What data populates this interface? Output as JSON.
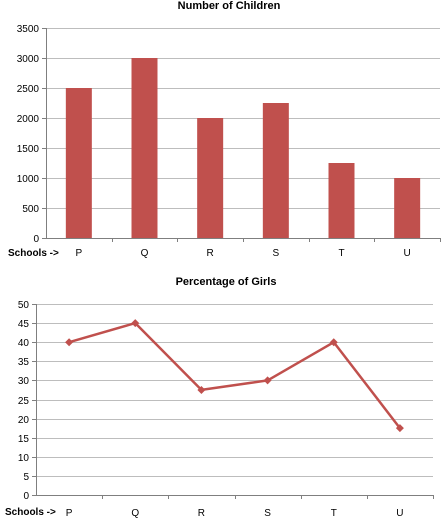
{
  "chart_data": [
    {
      "type": "bar",
      "title": "Number of Children",
      "category_prefix": "Schools ->",
      "categories": [
        "P",
        "Q",
        "R",
        "S",
        "T",
        "U"
      ],
      "values": [
        2500,
        3000,
        2000,
        2250,
        1250,
        1000
      ],
      "ylim": [
        0,
        3500
      ],
      "yticks": [
        0,
        500,
        1000,
        1500,
        2000,
        2500,
        3000,
        3500
      ],
      "grid": true,
      "color": "#c0504d"
    },
    {
      "type": "line",
      "title": "Percentage of Girls",
      "category_prefix": "Schools ->",
      "categories": [
        "P",
        "Q",
        "R",
        "S",
        "T",
        "U"
      ],
      "values": [
        40,
        45,
        27.5,
        30,
        40,
        17.5
      ],
      "ylim": [
        0,
        50
      ],
      "yticks": [
        0,
        5,
        10,
        15,
        20,
        25,
        30,
        35,
        40,
        45,
        50
      ],
      "grid": true,
      "marker": "diamond",
      "color": "#c0504d"
    }
  ]
}
